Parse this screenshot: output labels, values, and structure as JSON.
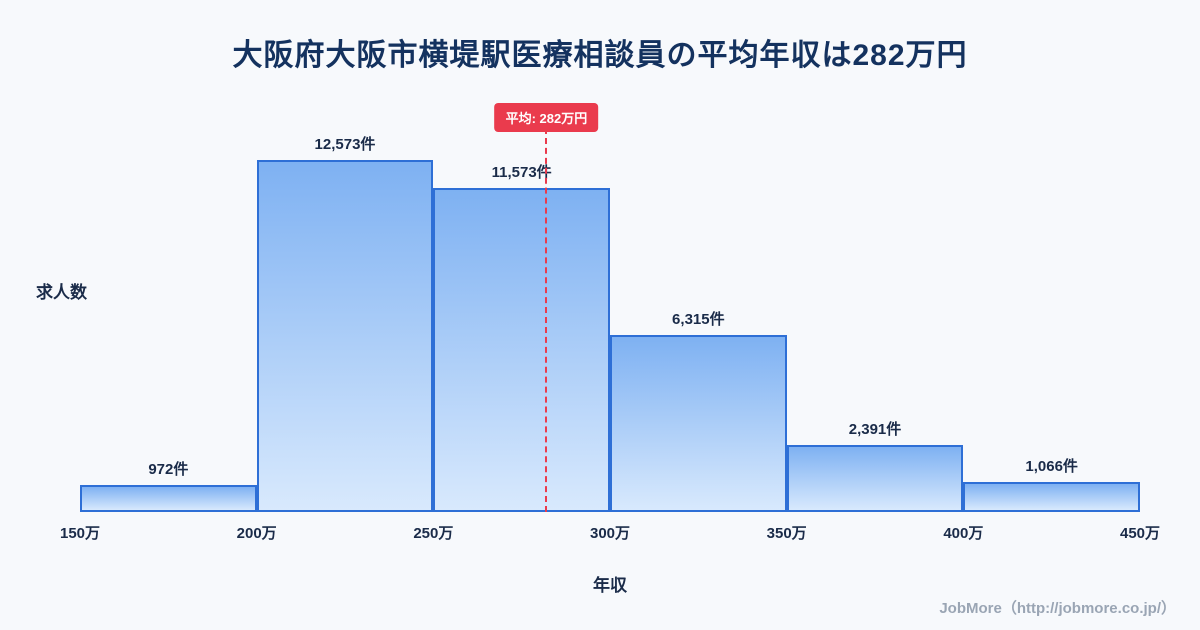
{
  "title": "大阪府大阪市横堤駅医療相談員の平均年収は282万円",
  "footer": "JobMore（http://jobmore.co.jp/）",
  "chart_data": {
    "type": "bar",
    "title": "大阪府大阪市横堤駅医療相談員の平均年収は282万円",
    "xlabel": "年収",
    "ylabel": "求人数",
    "x_tick_labels": [
      "150万",
      "200万",
      "250万",
      "300万",
      "350万",
      "400万",
      "450万"
    ],
    "bin_edges": [
      150,
      200,
      250,
      300,
      350,
      400,
      450
    ],
    "values": [
      972,
      12573,
      11573,
      6315,
      2391,
      1066
    ],
    "value_labels": [
      "972件",
      "12,573件",
      "11,573件",
      "6,315件",
      "2,391件",
      "1,066件"
    ],
    "ylim": [
      0,
      13300
    ],
    "grid": false,
    "legend": "none",
    "average": {
      "value": 282,
      "label": "平均: 282万円"
    },
    "colors": {
      "bar_border": "#2e6fd6",
      "bar_top": "#7eb1f2",
      "bar_bottom": "#d8e9fd",
      "average_red": "#ea3b4d",
      "title_navy": "#14325f",
      "label_navy": "#1a2b49",
      "footer_gray": "#9aa5b4",
      "background": "#f7f9fc"
    }
  }
}
